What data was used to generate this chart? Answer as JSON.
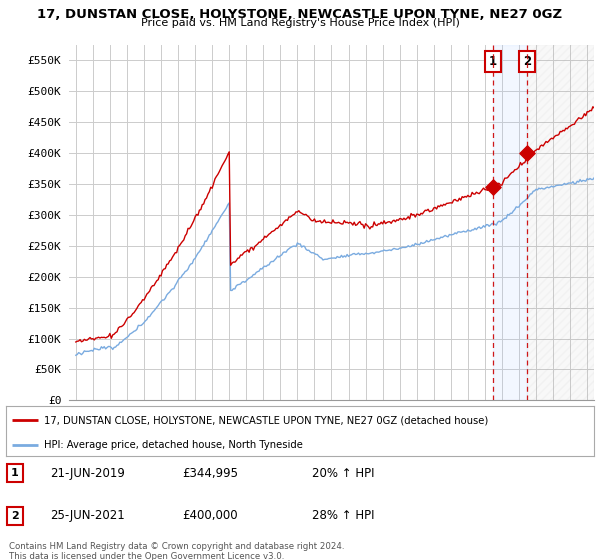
{
  "title": "17, DUNSTAN CLOSE, HOLYSTONE, NEWCASTLE UPON TYNE, NE27 0GZ",
  "subtitle": "Price paid vs. HM Land Registry's House Price Index (HPI)",
  "legend_line1": "17, DUNSTAN CLOSE, HOLYSTONE, NEWCASTLE UPON TYNE, NE27 0GZ (detached house)",
  "legend_line2": "HPI: Average price, detached house, North Tyneside",
  "footer": "Contains HM Land Registry data © Crown copyright and database right 2024.\nThis data is licensed under the Open Government Licence v3.0.",
  "sale1_date": "21-JUN-2019",
  "sale1_price": "£344,995",
  "sale1_hpi": "20% ↑ HPI",
  "sale2_date": "25-JUN-2021",
  "sale2_price": "£400,000",
  "sale2_hpi": "28% ↑ HPI",
  "red_color": "#cc0000",
  "blue_color": "#7aabe0",
  "background_color": "#ffffff",
  "grid_color": "#cccccc",
  "ylim": [
    0,
    575000
  ],
  "yticks": [
    0,
    50000,
    100000,
    150000,
    200000,
    250000,
    300000,
    350000,
    400000,
    450000,
    500000,
    550000
  ],
  "ytick_labels": [
    "£0",
    "£50K",
    "£100K",
    "£150K",
    "£200K",
    "£250K",
    "£300K",
    "£350K",
    "£400K",
    "£450K",
    "£500K",
    "£550K"
  ],
  "sale1_x": 2019.47,
  "sale2_x": 2021.48,
  "sale1_y": 344995,
  "sale2_y": 400000,
  "xmin": 1994.6,
  "xmax": 2025.4
}
